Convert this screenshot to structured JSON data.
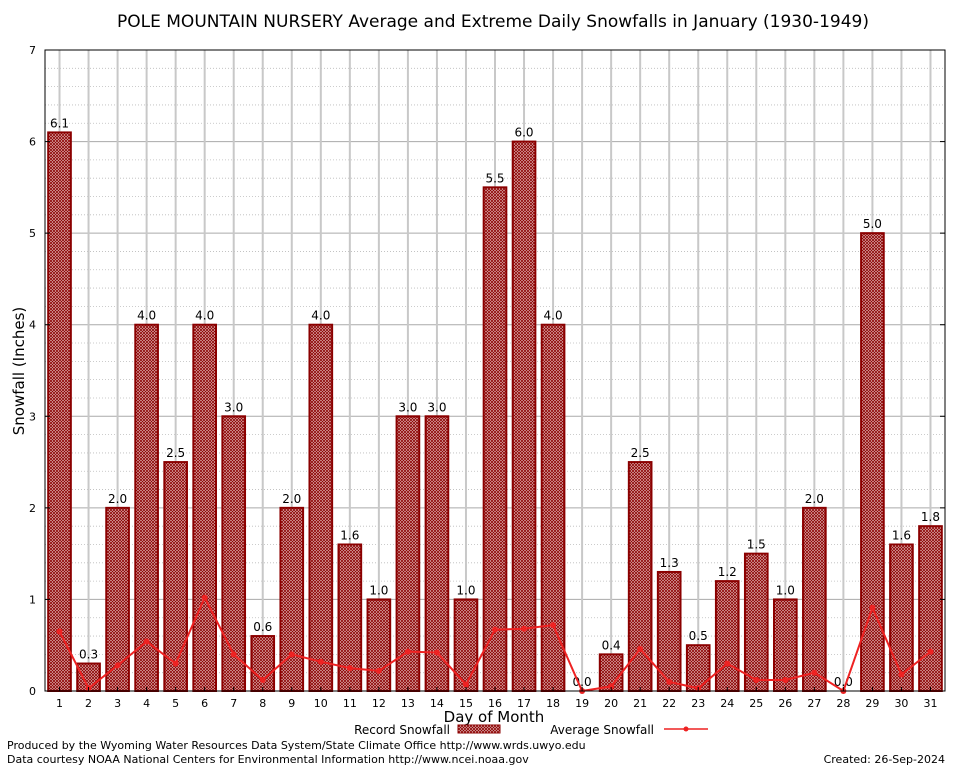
{
  "chart_data": {
    "type": "bar",
    "title": "POLE MOUNTAIN NURSERY Average and Extreme Daily Snowfalls in January (1930-1949)",
    "xlabel": "Day of Month",
    "ylabel": "Snowfall (Inches)",
    "ylim": [
      0,
      7
    ],
    "yticks": [
      "0",
      "1",
      "2",
      "3",
      "4",
      "5",
      "6",
      "7"
    ],
    "categories": [
      "1",
      "2",
      "3",
      "4",
      "5",
      "6",
      "7",
      "8",
      "9",
      "10",
      "11",
      "12",
      "13",
      "14",
      "15",
      "16",
      "17",
      "18",
      "19",
      "20",
      "21",
      "22",
      "23",
      "24",
      "25",
      "26",
      "27",
      "28",
      "29",
      "30",
      "31"
    ],
    "series": [
      {
        "name": "Record Snowfall",
        "kind": "bar",
        "color": "#8b0000",
        "values": [
          6.1,
          0.3,
          2.0,
          4.0,
          2.5,
          4.0,
          3.0,
          0.6,
          2.0,
          4.0,
          1.6,
          1.0,
          3.0,
          3.0,
          1.0,
          5.5,
          6.0,
          4.0,
          0.0,
          0.4,
          2.5,
          1.3,
          0.5,
          1.2,
          1.5,
          1.0,
          2.0,
          0.0,
          5.0,
          1.6,
          1.8
        ],
        "labels": [
          "6.1",
          "0.3",
          "2.0",
          "4.0",
          "2.5",
          "4.0",
          "3.0",
          "0.6",
          "2.0",
          "4.0",
          "1.6",
          "1.0",
          "3.0",
          "3.0",
          "1.0",
          "5.5",
          "6.0",
          "4.0",
          "0.0",
          "0.4",
          "2.5",
          "1.3",
          "0.5",
          "1.2",
          "1.5",
          "1.0",
          "2.0",
          "0.0",
          "5.0",
          "1.6",
          "1.8"
        ]
      },
      {
        "name": "Average Snowfall",
        "kind": "line",
        "color": "#ee2222",
        "values": [
          0.65,
          0.03,
          0.28,
          0.54,
          0.3,
          1.02,
          0.4,
          0.12,
          0.4,
          0.32,
          0.25,
          0.22,
          0.43,
          0.42,
          0.07,
          0.67,
          0.68,
          0.72,
          0.0,
          0.05,
          0.46,
          0.1,
          0.03,
          0.3,
          0.12,
          0.12,
          0.2,
          0.0,
          0.91,
          0.18,
          0.43
        ]
      }
    ],
    "grid": true,
    "legend": "bottom"
  },
  "footer": {
    "producer": "Produced by the Wyoming Water Resources Data System/State Climate Office http://www.wrds.uwyo.edu",
    "source": "Data courtesy NOAA National Centers for Environmental Information http://www.ncei.noaa.gov",
    "created": "Created:  26-Sep-2024"
  }
}
